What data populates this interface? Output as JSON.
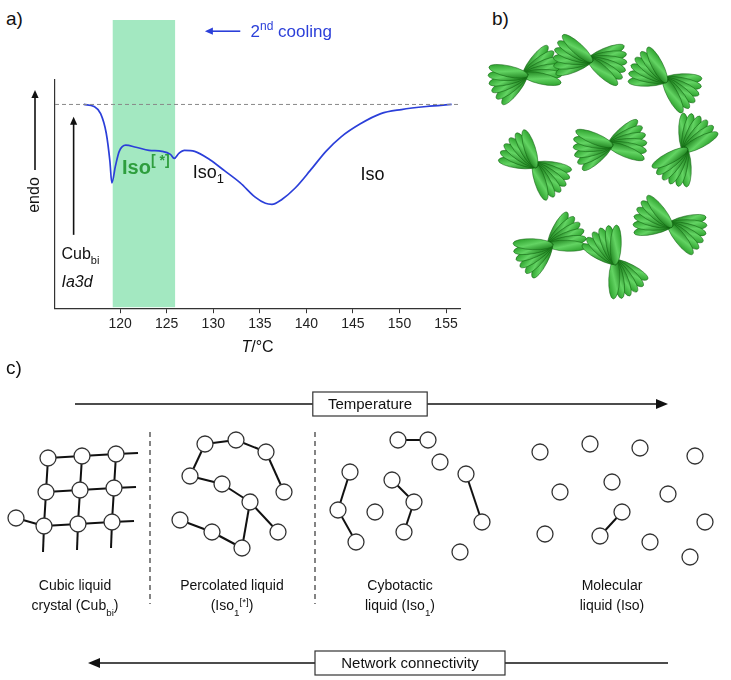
{
  "panels": [
    "a)",
    "b)",
    "c)"
  ],
  "chart_data": {
    "type": "line",
    "x_label": [
      {
        "text": "T",
        "italic": true
      },
      {
        "text": "/°C"
      }
    ],
    "y_label": "endo",
    "xlim": [
      113,
      156.5
    ],
    "xticks": [
      120,
      125,
      130,
      135,
      140,
      145,
      150,
      155
    ],
    "ylim": [
      -10,
      1.2
    ],
    "tick_labels": "x",
    "grid": false,
    "series": [
      {
        "color": "#2b3fd9",
        "x": [
          116.1,
          117.2,
          117.9,
          118.5,
          118.9,
          119.1,
          119.5,
          119.9,
          120.6,
          121.7,
          123.1,
          124.5,
          125.4,
          125.8,
          126.3,
          126.9,
          128.0,
          129.6,
          131.2,
          132.9,
          134.5,
          135.6,
          136.3,
          137.4,
          138.8,
          140.4,
          142.1,
          143.7,
          145.8,
          148.0,
          150.2,
          152.9,
          155.6
        ],
        "values": [
          0,
          -0.1,
          -0.45,
          -1.4,
          -2.8,
          -3.85,
          -3.0,
          -2.3,
          -2.0,
          -2.1,
          -2.25,
          -2.3,
          -2.45,
          -2.65,
          -2.4,
          -2.25,
          -2.3,
          -2.7,
          -3.25,
          -3.85,
          -4.55,
          -4.85,
          -4.9,
          -4.65,
          -4.1,
          -3.25,
          -2.3,
          -1.6,
          -0.95,
          -0.45,
          -0.25,
          -0.1,
          0
        ]
      },
      {
        "color": "#888888",
        "line_style": "dashed",
        "x": [
          113,
          156.5
        ],
        "values": [
          0,
          0
        ]
      }
    ],
    "highlight": {
      "x": [
        119.2,
        125.9
      ],
      "color": "#a3e8c1"
    },
    "annotations": [
      {
        "parts": [
          {
            "text": "2"
          },
          {
            "text": "nd",
            "sup": true
          },
          {
            "text": " cooling"
          }
        ],
        "color": "#2b3fd9"
      },
      {
        "parts": [
          {
            "text": "Iso"
          },
          {
            "text": "[ *]",
            "sup": true
          }
        ],
        "color": "#2e9e3e",
        "bold": true
      },
      {
        "parts": [
          {
            "text": "Iso"
          },
          {
            "text": "1",
            "sub": true
          }
        ],
        "color": "#111111"
      },
      {
        "parts": [
          {
            "text": "Iso"
          }
        ],
        "color": "#111111"
      },
      {
        "parts": [
          {
            "text": "Cub"
          },
          {
            "text": "bi",
            "sub": true
          }
        ],
        "color": "#111111"
      },
      {
        "parts": [
          {
            "text": "Ia3d",
            "italic": true
          }
        ],
        "color": "#111111"
      }
    ]
  },
  "diagram": {
    "top_arrow": "Temperature",
    "bottom_arrow": "Network connectivity",
    "stages": [
      {
        "lines": [
          [
            {
              "text": "Cubic liquid"
            }
          ],
          [
            {
              "text": "crystal (Cub"
            },
            {
              "text": "bi",
              "sub": true
            },
            {
              "text": ")"
            }
          ]
        ]
      },
      {
        "lines": [
          [
            {
              "text": "Percolated liquid"
            }
          ],
          [
            {
              "text": "(Iso"
            },
            {
              "text": "1",
              "sub": true
            },
            {
              "text": "[*]",
              "sup": true
            },
            {
              "text": ")"
            }
          ]
        ]
      },
      {
        "lines": [
          [
            {
              "text": "Cybotactic"
            }
          ],
          [
            {
              "text": "liquid (Iso"
            },
            {
              "text": "1",
              "sub": true
            },
            {
              "text": ")"
            }
          ]
        ]
      },
      {
        "lines": [
          [
            {
              "text": "Molecular"
            }
          ],
          [
            {
              "text": "liquid (Iso)"
            }
          ]
        ]
      }
    ]
  }
}
